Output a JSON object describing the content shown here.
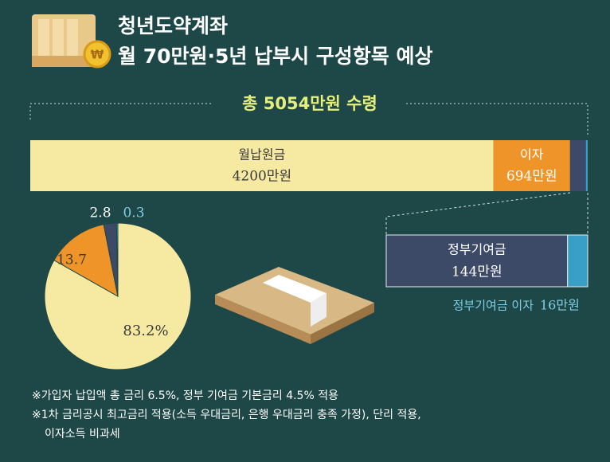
{
  "title": [
    "청년도약계좌",
    "월 70만원·5년 납부시 구성항목 예상"
  ],
  "chart_data": [
    {
      "type": "stacked-bar",
      "title": "총 5054만원 수령",
      "xlim": [
        0,
        5054
      ],
      "series": [
        {
          "name": "월납원금",
          "color": "#f6eaa2",
          "values": [
            4200
          ],
          "value_labels": [
            "4200만원"
          ]
        },
        {
          "name": "이자",
          "color": "#ef9428",
          "values": [
            694
          ],
          "value_labels": [
            "694만원"
          ]
        },
        {
          "name": "정부기여금",
          "color": "#3c4a68",
          "values": [
            144
          ],
          "value_labels": [
            "144만원"
          ]
        },
        {
          "name": "정부기여금 이자",
          "color": "#3a9fc6",
          "values": [
            16
          ],
          "value_labels": [
            "16만원"
          ]
        }
      ]
    },
    {
      "type": "pie",
      "values": [
        83.2,
        13.7,
        2.8,
        0.3
      ],
      "value_labels": [
        "83.2%",
        "13.7",
        "2.8",
        "0.3"
      ],
      "colors": [
        "#f6eaa2",
        "#ef9428",
        "#3c4a68",
        "#3a9fc6"
      ]
    }
  ],
  "notes": [
    "※가입자 납입액 총 금리 6.5%, 정부 기여금 기본금리 4.5% 적용",
    "※1차 금리공시 최고금리 적용(소득 우대금리, 은행 우대금리 충족 가정), 단리 적용,",
    "이자소득 비과세"
  ]
}
